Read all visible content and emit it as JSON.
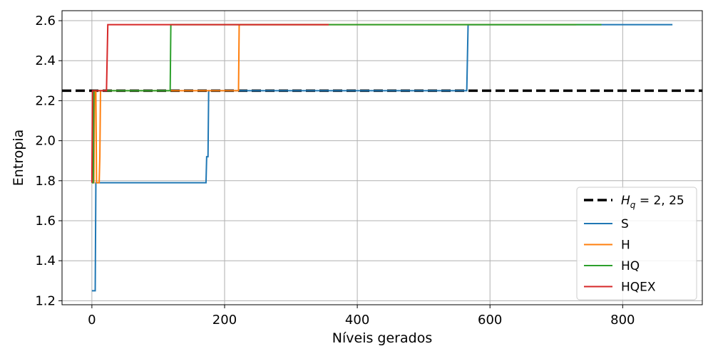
{
  "chart_data": {
    "type": "line",
    "title": "",
    "xlabel": "Níveis gerados",
    "ylabel": "Entropia",
    "xlim": [
      -45,
      920
    ],
    "ylim": [
      1.18,
      2.65
    ],
    "xticks": [
      0,
      200,
      400,
      600,
      800
    ],
    "yticks": [
      1.2,
      1.4,
      1.6,
      1.8,
      2.0,
      2.2,
      2.4,
      2.6
    ],
    "xtick_labels": [
      "0",
      "200",
      "400",
      "600",
      "800"
    ],
    "ytick_labels": [
      "1.2",
      "1.4",
      "1.6",
      "1.8",
      "2.0",
      "2.2",
      "2.4",
      "2.6"
    ],
    "grid": true,
    "legend_position": "lower-right",
    "reference_line": {
      "label_main": "H",
      "label_sub": "q",
      "label_rest": " = 2, 25",
      "y": 2.25,
      "color": "#000000",
      "style": "dashed"
    },
    "series": [
      {
        "name": "S",
        "color": "#1f77b4",
        "points": [
          [
            0,
            1.25
          ],
          [
            5,
            1.25
          ],
          [
            6,
            1.79
          ],
          [
            170,
            1.79
          ],
          [
            172,
            1.79
          ],
          [
            173,
            1.92
          ],
          [
            175,
            1.92
          ],
          [
            176,
            2.25
          ],
          [
            565,
            2.25
          ],
          [
            567,
            2.58
          ],
          [
            875,
            2.58
          ]
        ]
      },
      {
        "name": "H",
        "color": "#ff7f0e",
        "points": [
          [
            0,
            1.79
          ],
          [
            3,
            1.79
          ],
          [
            4,
            2.25
          ],
          [
            6,
            2.25
          ],
          [
            7,
            1.79
          ],
          [
            11,
            1.79
          ],
          [
            12,
            1.92
          ],
          [
            13,
            2.25
          ],
          [
            221,
            2.25
          ],
          [
            222,
            2.58
          ],
          [
            730,
            2.58
          ]
        ]
      },
      {
        "name": "HQ",
        "color": "#2ca02c",
        "points": [
          [
            0,
            1.79
          ],
          [
            2,
            1.79
          ],
          [
            3,
            2.25
          ],
          [
            118,
            2.25
          ],
          [
            119,
            2.58
          ],
          [
            768,
            2.58
          ]
        ]
      },
      {
        "name": "HQEX",
        "color": "#d62728",
        "points": [
          [
            0,
            1.79
          ],
          [
            1,
            2.25
          ],
          [
            22,
            2.25
          ],
          [
            24,
            2.58
          ],
          [
            357,
            2.58
          ]
        ]
      }
    ]
  }
}
